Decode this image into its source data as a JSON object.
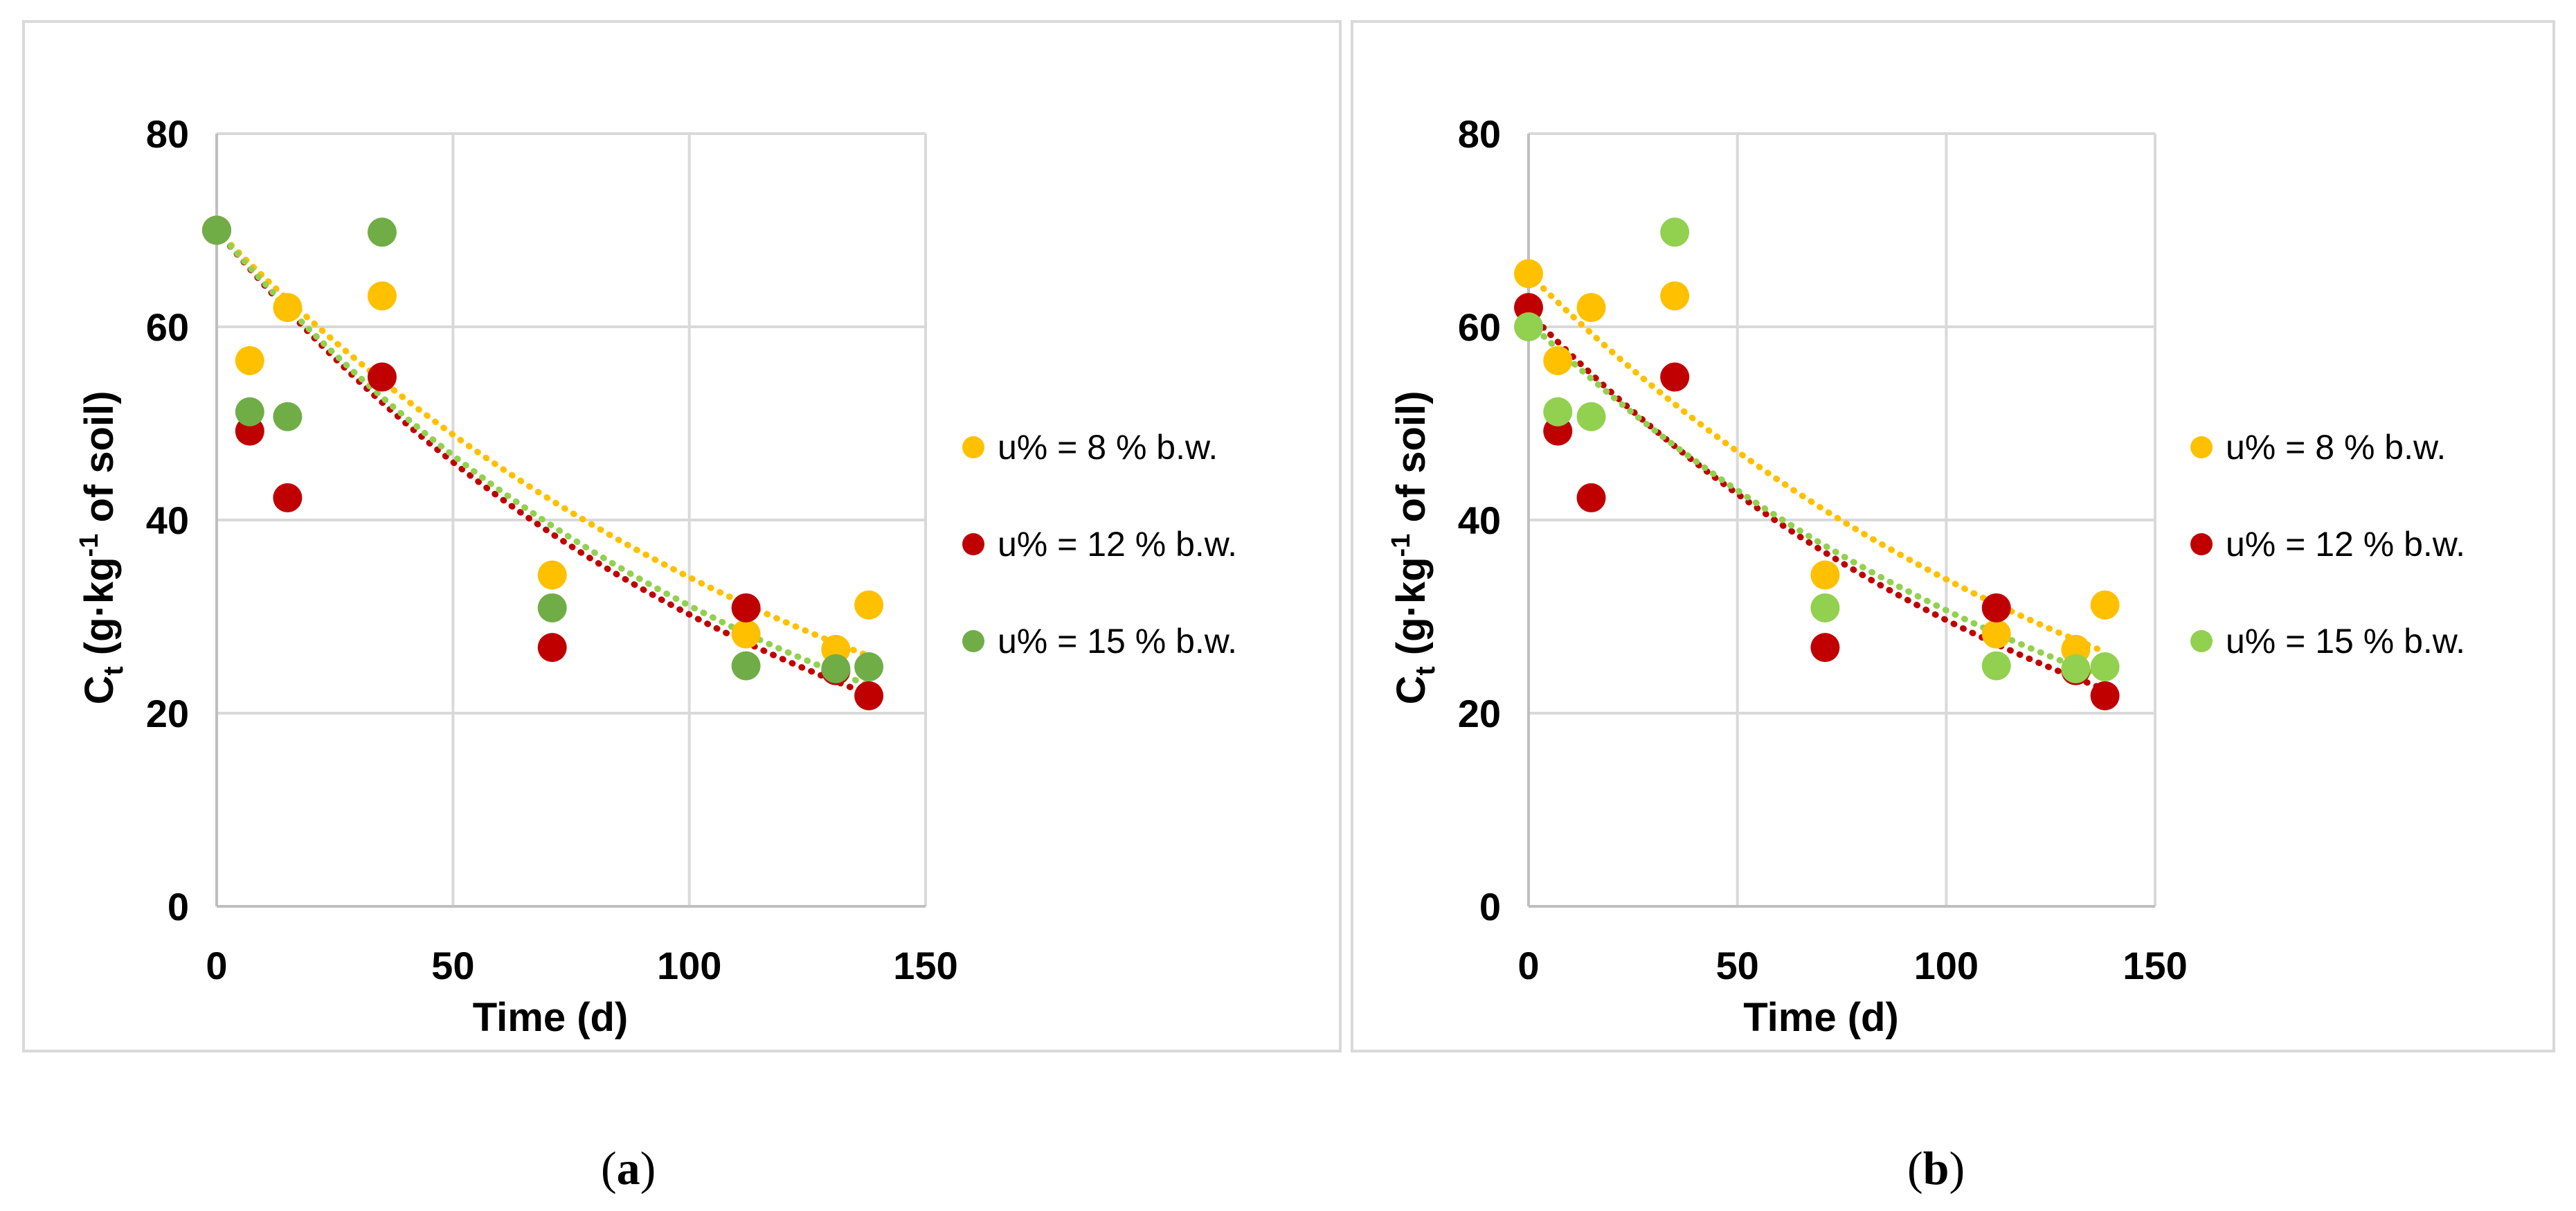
{
  "chart_data": [
    {
      "type": "scatter",
      "panel": "a",
      "caption_letter": "a",
      "xlabel": "Time (d)",
      "ylabel_main": "C",
      "ylabel_sub": "t",
      "ylabel_rest_1": " (g·kg",
      "ylabel_sup": "-1",
      "ylabel_rest_2": " of soil)",
      "xlim": [
        0,
        150
      ],
      "ylim": [
        0,
        80
      ],
      "xticks": [
        0,
        50,
        100,
        150
      ],
      "yticks": [
        0,
        20,
        40,
        60,
        80
      ],
      "grid": true,
      "legend_position": "right",
      "series": [
        {
          "name": "u% = 8 % b.w.",
          "color": "#ffc000",
          "x": [
            0,
            7,
            15,
            35,
            71,
            112,
            131,
            138
          ],
          "y": [
            70,
            56.5,
            62,
            63.2,
            34.3,
            28.2,
            26.6,
            31.2
          ],
          "trend": {
            "a": 70,
            "k": 0.0072
          }
        },
        {
          "name": "u% = 12 % b.w.",
          "color": "#c00000",
          "x": [
            0,
            7,
            15,
            35,
            71,
            112,
            131,
            138
          ],
          "y": [
            70,
            49.2,
            42.3,
            54.8,
            26.8,
            30.9,
            24.4,
            21.8
          ],
          "trend": {
            "a": 70,
            "k": 0.0084
          }
        },
        {
          "name": "u% = 15 % b.w.",
          "color": "#70ad47",
          "trend_color": "#92d050",
          "x": [
            0,
            7,
            15,
            35,
            71,
            112,
            131,
            138
          ],
          "y": [
            70,
            51.2,
            50.7,
            69.8,
            30.9,
            24.9,
            24.6,
            24.8
          ],
          "trend": {
            "a": 70,
            "k": 0.0081
          }
        }
      ]
    },
    {
      "type": "scatter",
      "panel": "b",
      "caption_letter": "b",
      "xlabel": "Time (d)",
      "ylabel_main": "C",
      "ylabel_sub": "t",
      "ylabel_rest_1": " (g·kg",
      "ylabel_sup": "-1",
      "ylabel_rest_2": " of soil)",
      "xlim": [
        0,
        150
      ],
      "ylim": [
        0,
        80
      ],
      "xticks": [
        0,
        50,
        100,
        150
      ],
      "yticks": [
        0,
        20,
        40,
        60,
        80
      ],
      "grid": true,
      "legend_position": "right",
      "series": [
        {
          "name": "u% = 8 % b.w.",
          "color": "#ffc000",
          "x": [
            0,
            7,
            15,
            35,
            71,
            112,
            131,
            138
          ],
          "y": [
            65.5,
            56.5,
            62,
            63.2,
            34.3,
            28.2,
            26.6,
            31.2
          ],
          "trend": {
            "a": 65.5,
            "k": 0.0066
          }
        },
        {
          "name": "u% = 12 % b.w.",
          "color": "#c00000",
          "x": [
            0,
            7,
            15,
            35,
            71,
            112,
            131,
            138
          ],
          "y": [
            62,
            49.2,
            42.3,
            54.8,
            26.8,
            30.9,
            24.4,
            21.8
          ],
          "trend": {
            "a": 61.5,
            "k": 0.0073
          }
        },
        {
          "name": "u% = 15 % b.w.",
          "color": "#92d050",
          "x": [
            0,
            7,
            15,
            35,
            71,
            112,
            131,
            138
          ],
          "y": [
            60,
            51.2,
            50.7,
            69.8,
            30.9,
            24.9,
            24.6,
            24.8
          ],
          "trend": {
            "a": 60.5,
            "k": 0.0068
          }
        }
      ]
    }
  ]
}
